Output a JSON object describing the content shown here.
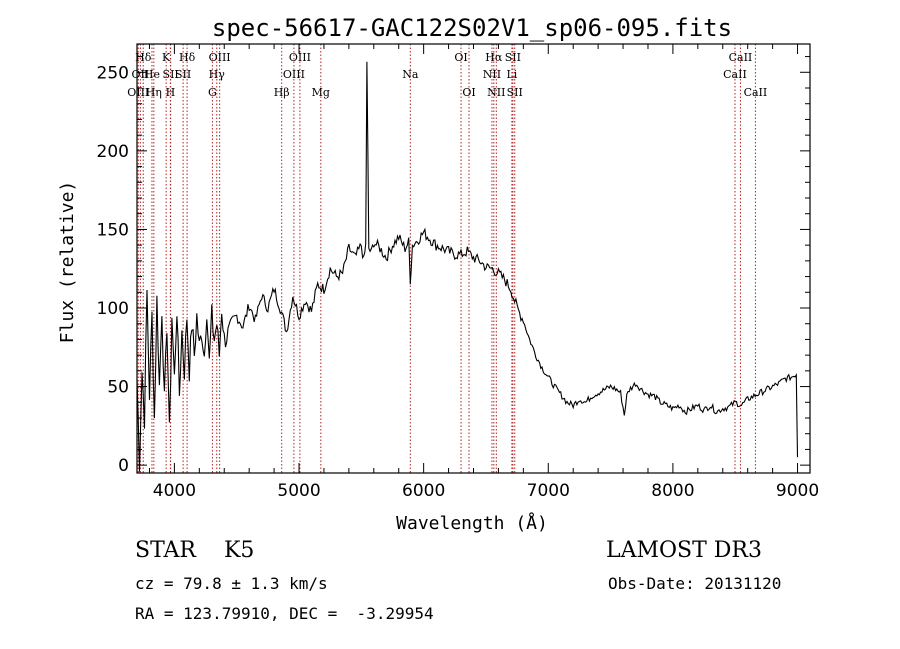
{
  "chart_data": {
    "type": "line",
    "title": "spec-56617-GAC122S02V1_sp06-095.fits",
    "xlabel": "Wavelength (Å)",
    "ylabel": "Flux (relative)",
    "xlim": [
      3700,
      9100
    ],
    "ylim": [
      -5,
      268
    ],
    "xticks": [
      4000,
      5000,
      6000,
      7000,
      8000,
      9000
    ],
    "yticks": [
      0,
      50,
      100,
      150,
      200,
      250
    ],
    "grid": false,
    "series": [
      {
        "name": "flux",
        "x": [
          3700,
          3720,
          3740,
          3760,
          3780,
          3800,
          3820,
          3840,
          3860,
          3880,
          3900,
          3920,
          3940,
          3960,
          3980,
          4000,
          4020,
          4040,
          4060,
          4080,
          4100,
          4120,
          4140,
          4160,
          4180,
          4200,
          4220,
          4240,
          4260,
          4280,
          4300,
          4320,
          4340,
          4360,
          4380,
          4400,
          4450,
          4500,
          4550,
          4600,
          4650,
          4700,
          4750,
          4800,
          4850,
          4900,
          4950,
          5000,
          5050,
          5100,
          5150,
          5200,
          5250,
          5300,
          5350,
          5400,
          5450,
          5500,
          5520,
          5535,
          5545,
          5560,
          5580,
          5600,
          5650,
          5700,
          5750,
          5800,
          5850,
          5880,
          5893,
          5910,
          5950,
          6000,
          6050,
          6100,
          6150,
          6200,
          6250,
          6300,
          6350,
          6400,
          6450,
          6500,
          6550,
          6600,
          6650,
          6700,
          6750,
          6800,
          6850,
          6900,
          6950,
          7000,
          7050,
          7100,
          7150,
          7200,
          7250,
          7300,
          7350,
          7400,
          7450,
          7500,
          7550,
          7580,
          7610,
          7630,
          7650,
          7700,
          7750,
          7800,
          7850,
          7900,
          7950,
          8000,
          8050,
          8100,
          8150,
          8200,
          8250,
          8300,
          8350,
          8400,
          8450,
          8500,
          8550,
          8600,
          8650,
          8700,
          8750,
          8800,
          8850,
          8900,
          8950,
          8990,
          9000
        ],
        "y": [
          55,
          2,
          60,
          30,
          110,
          45,
          95,
          30,
          105,
          50,
          100,
          40,
          90,
          20,
          95,
          55,
          100,
          45,
          85,
          60,
          95,
          60,
          90,
          70,
          95,
          75,
          85,
          70,
          100,
          65,
          95,
          80,
          90,
          70,
          100,
          80,
          85,
          95,
          88,
          102,
          92,
          108,
          100,
          112,
          100,
          85,
          108,
          95,
          105,
          98,
          115,
          112,
          125,
          120,
          122,
          138,
          132,
          140,
          130,
          140,
          255,
          138,
          135,
          142,
          138,
          132,
          140,
          145,
          138,
          142,
          118,
          140,
          143,
          148,
          144,
          140,
          138,
          136,
          134,
          134,
          136,
          132,
          130,
          126,
          125,
          122,
          118,
          112,
          100,
          92,
          80,
          70,
          62,
          56,
          50,
          45,
          40,
          38,
          42,
          40,
          44,
          46,
          48,
          50,
          48,
          46,
          32,
          44,
          48,
          52,
          48,
          45,
          44,
          40,
          38,
          36,
          38,
          34,
          36,
          38,
          35,
          38,
          34,
          36,
          37,
          40,
          38,
          42,
          44,
          46,
          48,
          50,
          52,
          55,
          56,
          58,
          5
        ]
      }
    ],
    "lines": [
      {
        "name": "Hδ",
        "wave": 3750,
        "row": 1
      },
      {
        "name": "OII",
        "wave": 3727,
        "row": 2
      },
      {
        "name": "OIII",
        "wave": 3710,
        "row": 3
      },
      {
        "name": "He",
        "wave": 3820,
        "row": 2
      },
      {
        "name": "Hη",
        "wave": 3835,
        "row": 3
      },
      {
        "name": "K",
        "wave": 3934,
        "row": 1
      },
      {
        "name": "SII",
        "wave": 3970,
        "row": 2
      },
      {
        "name": "H",
        "wave": 3968,
        "row": 3
      },
      {
        "name": "Hδ",
        "wave": 4102,
        "row": 1
      },
      {
        "name": "SII",
        "wave": 4070,
        "row": 2
      },
      {
        "name": "OIII",
        "wave": 4363,
        "row": 1
      },
      {
        "name": "Hγ",
        "wave": 4340,
        "row": 2
      },
      {
        "name": "G",
        "wave": 4305,
        "row": 3
      },
      {
        "name": "OIII",
        "wave": 5007,
        "row": 1
      },
      {
        "name": "OIII",
        "wave": 4959,
        "row": 2
      },
      {
        "name": "Hβ",
        "wave": 4861,
        "row": 3
      },
      {
        "name": "Mg",
        "wave": 5175,
        "row": 3
      },
      {
        "name": "Na",
        "wave": 5893,
        "row": 2
      },
      {
        "name": "OI",
        "wave": 6300,
        "row": 1
      },
      {
        "name": "OI",
        "wave": 6364,
        "row": 3
      },
      {
        "name": "Hα",
        "wave": 6563,
        "row": 1
      },
      {
        "name": "NII",
        "wave": 6548,
        "row": 2
      },
      {
        "name": "NII",
        "wave": 6583,
        "row": 3
      },
      {
        "name": "SII",
        "wave": 6716,
        "row": 1
      },
      {
        "name": "Li",
        "wave": 6708,
        "row": 2
      },
      {
        "name": "SII",
        "wave": 6731,
        "row": 3
      },
      {
        "name": "CaII",
        "wave": 8542,
        "row": 1
      },
      {
        "name": "CaII",
        "wave": 8498,
        "row": 2
      },
      {
        "name": "CaII",
        "wave": 8662,
        "row": 3
      }
    ]
  },
  "info": {
    "class": "STAR    K5",
    "survey": "LAMOST DR3",
    "cz": "cz = 79.8 ± 1.3 km/s",
    "obs_date": "Obs-Date: 20131120",
    "radec": "RA = 123.79910, DEC =  -3.29954"
  },
  "colors": {
    "axis": "#000000",
    "spectrum": "#000000",
    "line_marker": "#b22222"
  }
}
